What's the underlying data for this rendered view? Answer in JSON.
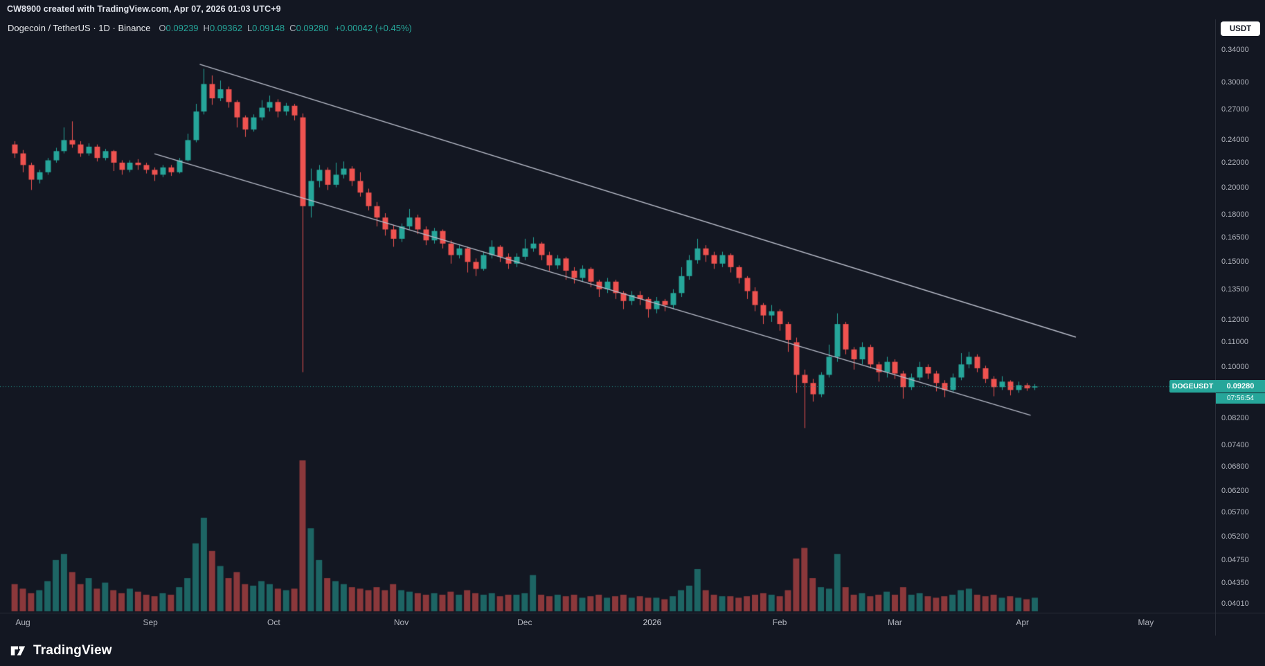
{
  "attribution": {
    "text": "CW8900 created with TradingView.com, Apr 07, 2026 01:03 UTC+9"
  },
  "legend": {
    "title": "Dogecoin / TetherUS · 1D · Binance",
    "ohlc": [
      {
        "k": "O",
        "v": "0.09239"
      },
      {
        "k": "H",
        "v": "0.09362"
      },
      {
        "k": "L",
        "v": "0.09148"
      },
      {
        "k": "C",
        "v": "0.09280"
      }
    ],
    "change": "+0.00042 (+0.45%)"
  },
  "price_axis": {
    "currency_button": "USDT",
    "tag": {
      "symbol": "DOGEUSDT",
      "price": "0.09280",
      "countdown": "07:56:54"
    }
  },
  "footer": {
    "brand": "TradingView"
  },
  "chart_data": {
    "type": "candlestick",
    "title": "Dogecoin / TetherUS · 1D · Binance",
    "symbol": "DOGEUSDT",
    "exchange": "Binance",
    "interval": "1D",
    "scale": "log",
    "last_price": 0.0928,
    "time": {
      "anchor_label": "Aug = 2025-08-01",
      "first_candle_day": -3,
      "days_per_candle": 2
    },
    "y_ticks": [
      {
        "label": "0.34000",
        "value": 0.34
      },
      {
        "label": "0.30000",
        "value": 0.3
      },
      {
        "label": "0.27000",
        "value": 0.27
      },
      {
        "label": "0.24000",
        "value": 0.24
      },
      {
        "label": "0.22000",
        "value": 0.22
      },
      {
        "label": "0.20000",
        "value": 0.2
      },
      {
        "label": "0.18000",
        "value": 0.18
      },
      {
        "label": "0.16500",
        "value": 0.165
      },
      {
        "label": "0.15000",
        "value": 0.15
      },
      {
        "label": "0.13500",
        "value": 0.135
      },
      {
        "label": "0.12000",
        "value": 0.12
      },
      {
        "label": "0.11000",
        "value": 0.11
      },
      {
        "label": "0.10000",
        "value": 0.1
      },
      {
        "label": "0.08200",
        "value": 0.082
      },
      {
        "label": "0.07400",
        "value": 0.074
      },
      {
        "label": "0.06800",
        "value": 0.068
      },
      {
        "label": "0.06200",
        "value": 0.062
      },
      {
        "label": "0.05700",
        "value": 0.057
      },
      {
        "label": "0.05200",
        "value": 0.052
      },
      {
        "label": "0.04750",
        "value": 0.0475
      },
      {
        "label": "0.04350",
        "value": 0.0435
      },
      {
        "label": "0.04010",
        "value": 0.0401
      }
    ],
    "x_ticks": [
      {
        "label": "Aug",
        "day": 0
      },
      {
        "label": "Sep",
        "day": 31
      },
      {
        "label": "Oct",
        "day": 61
      },
      {
        "label": "Nov",
        "day": 92
      },
      {
        "label": "Dec",
        "day": 122
      },
      {
        "label": "2026",
        "day": 153,
        "year": true
      },
      {
        "label": "Feb",
        "day": 184
      },
      {
        "label": "Mar",
        "day": 212
      },
      {
        "label": "Apr",
        "day": 243
      },
      {
        "label": "May",
        "day": 273
      }
    ],
    "trendlines": [
      {
        "name": "channel-upper",
        "from": {
          "day": 43,
          "price": 0.3215
        },
        "to": {
          "day": 256,
          "price": 0.1122
        }
      },
      {
        "name": "channel-lower",
        "from": {
          "day": 32,
          "price": 0.2277
        },
        "to": {
          "day": 245,
          "price": 0.083
        }
      }
    ],
    "colors": {
      "up": "#26a69a",
      "down": "#ef5350",
      "vol_up": "rgba(38,166,154,0.55)",
      "vol_down": "rgba(239,83,80,0.55)",
      "trendline": "#b8bcc9",
      "price_line": "rgba(38,166,154,0.9)",
      "last_label_bg": "#26a69a"
    },
    "candles": [
      [
        0.236,
        0.239,
        0.224,
        0.228
      ],
      [
        0.228,
        0.231,
        0.212,
        0.218
      ],
      [
        0.218,
        0.22,
        0.198,
        0.206
      ],
      [
        0.206,
        0.214,
        0.203,
        0.212
      ],
      [
        0.212,
        0.224,
        0.21,
        0.222
      ],
      [
        0.222,
        0.233,
        0.22,
        0.23
      ],
      [
        0.23,
        0.252,
        0.228,
        0.24
      ],
      [
        0.24,
        0.258,
        0.233,
        0.236
      ],
      [
        0.236,
        0.239,
        0.225,
        0.228
      ],
      [
        0.228,
        0.237,
        0.226,
        0.234
      ],
      [
        0.234,
        0.236,
        0.221,
        0.224
      ],
      [
        0.224,
        0.232,
        0.222,
        0.23
      ],
      [
        0.23,
        0.231,
        0.213,
        0.22
      ],
      [
        0.22,
        0.222,
        0.21,
        0.214
      ],
      [
        0.214,
        0.222,
        0.212,
        0.22
      ],
      [
        0.22,
        0.223,
        0.214,
        0.218
      ],
      [
        0.218,
        0.22,
        0.211,
        0.214
      ],
      [
        0.214,
        0.216,
        0.205,
        0.21
      ],
      [
        0.21,
        0.218,
        0.208,
        0.216
      ],
      [
        0.216,
        0.218,
        0.209,
        0.212
      ],
      [
        0.212,
        0.224,
        0.211,
        0.222
      ],
      [
        0.222,
        0.246,
        0.221,
        0.24
      ],
      [
        0.24,
        0.276,
        0.238,
        0.268
      ],
      [
        0.268,
        0.316,
        0.265,
        0.298
      ],
      [
        0.298,
        0.308,
        0.275,
        0.282
      ],
      [
        0.282,
        0.302,
        0.279,
        0.292
      ],
      [
        0.292,
        0.295,
        0.272,
        0.278
      ],
      [
        0.278,
        0.28,
        0.252,
        0.262
      ],
      [
        0.262,
        0.264,
        0.243,
        0.25
      ],
      [
        0.25,
        0.265,
        0.248,
        0.262
      ],
      [
        0.262,
        0.28,
        0.259,
        0.272
      ],
      [
        0.272,
        0.285,
        0.268,
        0.278
      ],
      [
        0.278,
        0.281,
        0.262,
        0.268
      ],
      [
        0.268,
        0.277,
        0.264,
        0.274
      ],
      [
        0.274,
        0.276,
        0.259,
        0.264
      ],
      [
        0.262,
        0.266,
        0.098,
        0.186
      ],
      [
        0.186,
        0.215,
        0.178,
        0.205
      ],
      [
        0.205,
        0.218,
        0.2,
        0.214
      ],
      [
        0.214,
        0.216,
        0.198,
        0.202
      ],
      [
        0.202,
        0.22,
        0.2,
        0.21
      ],
      [
        0.21,
        0.221,
        0.207,
        0.215
      ],
      [
        0.215,
        0.217,
        0.201,
        0.205
      ],
      [
        0.205,
        0.212,
        0.193,
        0.196
      ],
      [
        0.196,
        0.199,
        0.183,
        0.186
      ],
      [
        0.186,
        0.189,
        0.172,
        0.178
      ],
      [
        0.178,
        0.181,
        0.166,
        0.17
      ],
      [
        0.17,
        0.173,
        0.159,
        0.164
      ],
      [
        0.164,
        0.174,
        0.162,
        0.172
      ],
      [
        0.172,
        0.184,
        0.17,
        0.178
      ],
      [
        0.178,
        0.18,
        0.167,
        0.17
      ],
      [
        0.17,
        0.172,
        0.16,
        0.163
      ],
      [
        0.163,
        0.171,
        0.161,
        0.169
      ],
      [
        0.169,
        0.17,
        0.158,
        0.161
      ],
      [
        0.161,
        0.163,
        0.149,
        0.154
      ],
      [
        0.154,
        0.16,
        0.152,
        0.158
      ],
      [
        0.158,
        0.159,
        0.144,
        0.15
      ],
      [
        0.15,
        0.152,
        0.142,
        0.146
      ],
      [
        0.146,
        0.156,
        0.145,
        0.154
      ],
      [
        0.154,
        0.163,
        0.152,
        0.159
      ],
      [
        0.159,
        0.16,
        0.15,
        0.153
      ],
      [
        0.153,
        0.155,
        0.146,
        0.149
      ],
      [
        0.149,
        0.155,
        0.147,
        0.153
      ],
      [
        0.153,
        0.164,
        0.151,
        0.158
      ],
      [
        0.158,
        0.165,
        0.156,
        0.161
      ],
      [
        0.161,
        0.162,
        0.151,
        0.154
      ],
      [
        0.154,
        0.156,
        0.145,
        0.148
      ],
      [
        0.148,
        0.154,
        0.146,
        0.152
      ],
      [
        0.152,
        0.153,
        0.14,
        0.145
      ],
      [
        0.145,
        0.147,
        0.138,
        0.141
      ],
      [
        0.141,
        0.148,
        0.139,
        0.146
      ],
      [
        0.146,
        0.147,
        0.136,
        0.139
      ],
      [
        0.139,
        0.14,
        0.131,
        0.135
      ],
      [
        0.135,
        0.141,
        0.133,
        0.139
      ],
      [
        0.139,
        0.14,
        0.13,
        0.133
      ],
      [
        0.133,
        0.134,
        0.125,
        0.129
      ],
      [
        0.129,
        0.134,
        0.127,
        0.132
      ],
      [
        0.132,
        0.134,
        0.127,
        0.13
      ],
      [
        0.13,
        0.131,
        0.121,
        0.125
      ],
      [
        0.125,
        0.131,
        0.123,
        0.129
      ],
      [
        0.129,
        0.13,
        0.124,
        0.127
      ],
      [
        0.127,
        0.135,
        0.125,
        0.133
      ],
      [
        0.133,
        0.147,
        0.131,
        0.142
      ],
      [
        0.142,
        0.154,
        0.14,
        0.151
      ],
      [
        0.151,
        0.164,
        0.149,
        0.158
      ],
      [
        0.158,
        0.16,
        0.15,
        0.154
      ],
      [
        0.154,
        0.156,
        0.146,
        0.149
      ],
      [
        0.149,
        0.156,
        0.147,
        0.154
      ],
      [
        0.154,
        0.155,
        0.144,
        0.147
      ],
      [
        0.147,
        0.148,
        0.138,
        0.141
      ],
      [
        0.141,
        0.142,
        0.13,
        0.134
      ],
      [
        0.134,
        0.136,
        0.124,
        0.127
      ],
      [
        0.127,
        0.128,
        0.118,
        0.122
      ],
      [
        0.122,
        0.127,
        0.119,
        0.124
      ],
      [
        0.124,
        0.125,
        0.115,
        0.118
      ],
      [
        0.118,
        0.119,
        0.106,
        0.111
      ],
      [
        0.11,
        0.112,
        0.0905,
        0.097
      ],
      [
        0.097,
        0.099,
        0.079,
        0.094
      ],
      [
        0.094,
        0.0955,
        0.0875,
        0.09
      ],
      [
        0.09,
        0.098,
        0.089,
        0.097
      ],
      [
        0.097,
        0.109,
        0.096,
        0.104
      ],
      [
        0.104,
        0.123,
        0.102,
        0.118
      ],
      [
        0.118,
        0.119,
        0.105,
        0.107
      ],
      [
        0.107,
        0.108,
        0.099,
        0.103
      ],
      [
        0.103,
        0.11,
        0.101,
        0.108
      ],
      [
        0.108,
        0.109,
        0.0995,
        0.101
      ],
      [
        0.101,
        0.102,
        0.0945,
        0.098
      ],
      [
        0.098,
        0.104,
        0.096,
        0.102
      ],
      [
        0.102,
        0.103,
        0.0955,
        0.0975
      ],
      [
        0.0975,
        0.0985,
        0.0885,
        0.0925
      ],
      [
        0.0925,
        0.0975,
        0.0915,
        0.096
      ],
      [
        0.096,
        0.102,
        0.095,
        0.1
      ],
      [
        0.1,
        0.101,
        0.0955,
        0.0975
      ],
      [
        0.0975,
        0.0985,
        0.091,
        0.094
      ],
      [
        0.094,
        0.095,
        0.089,
        0.0915
      ],
      [
        0.0915,
        0.0975,
        0.0905,
        0.096
      ],
      [
        0.096,
        0.1055,
        0.095,
        0.101
      ],
      [
        0.101,
        0.106,
        0.0995,
        0.104
      ],
      [
        0.104,
        0.105,
        0.098,
        0.0995
      ],
      [
        0.0995,
        0.1005,
        0.094,
        0.0955
      ],
      [
        0.0955,
        0.0965,
        0.0893,
        0.0925
      ],
      [
        0.0925,
        0.0965,
        0.0915,
        0.0945
      ],
      [
        0.0945,
        0.095,
        0.0896,
        0.0915
      ],
      [
        0.0915,
        0.0945,
        0.0905,
        0.0932
      ],
      [
        0.0932,
        0.094,
        0.0912,
        0.0921
      ],
      [
        0.09239,
        0.09362,
        0.09148,
        0.0928
      ]
    ],
    "volumes": [
      18,
      15,
      12,
      14,
      20,
      34,
      38,
      26,
      18,
      22,
      15,
      19,
      14,
      12,
      15,
      13,
      11,
      10,
      12,
      11,
      16,
      22,
      45,
      62,
      40,
      30,
      22,
      26,
      18,
      17,
      20,
      18,
      15,
      14,
      15,
      100,
      55,
      34,
      22,
      20,
      18,
      16,
      15,
      14,
      16,
      14,
      18,
      14,
      13,
      12,
      11,
      12,
      11,
      13,
      11,
      14,
      12,
      11,
      12,
      10,
      11,
      11,
      12,
      24,
      11,
      10,
      11,
      10,
      11,
      9,
      10,
      11,
      9,
      10,
      11,
      9,
      10,
      9,
      9,
      8,
      10,
      14,
      17,
      28,
      14,
      11,
      10,
      10,
      9,
      10,
      11,
      12,
      11,
      10,
      14,
      35,
      42,
      22,
      16,
      15,
      38,
      16,
      11,
      12,
      10,
      11,
      13,
      11,
      16,
      11,
      12,
      10,
      9,
      10,
      11,
      14,
      15,
      11,
      10,
      11,
      9,
      10,
      9,
      8,
      9
    ]
  }
}
